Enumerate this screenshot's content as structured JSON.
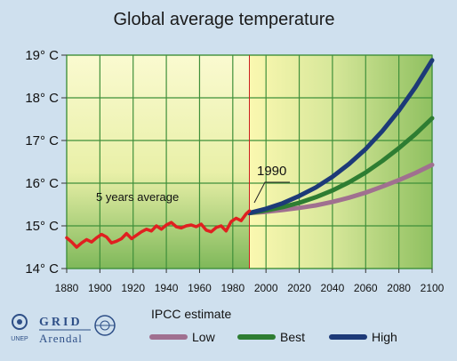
{
  "chart_data": {
    "type": "line",
    "title": "Global average temperature",
    "xlim": [
      1880,
      2100
    ],
    "ylim": [
      14,
      19
    ],
    "x_ticks": [
      "1880",
      "1900",
      "1920",
      "1940",
      "1960",
      "1980",
      "2000",
      "2020",
      "2040",
      "2060",
      "2080",
      "2100"
    ],
    "y_ticks": [
      "14° C",
      "15° C",
      "16° C",
      "17° C",
      "18° C",
      "19° C"
    ],
    "grid": true,
    "annotations": {
      "observed_label": "5 years average",
      "divider_label": "1990",
      "divider_year": 1990
    },
    "observed": {
      "x": [
        1880,
        1883,
        1886,
        1889,
        1892,
        1895,
        1898,
        1901,
        1904,
        1907,
        1910,
        1913,
        1916,
        1919,
        1922,
        1925,
        1928,
        1931,
        1934,
        1937,
        1940,
        1943,
        1946,
        1949,
        1952,
        1955,
        1958,
        1961,
        1964,
        1967,
        1970,
        1973,
        1976,
        1979,
        1982,
        1985,
        1988,
        1990
      ],
      "y": [
        14.72,
        14.62,
        14.5,
        14.6,
        14.68,
        14.62,
        14.72,
        14.8,
        14.74,
        14.6,
        14.64,
        14.7,
        14.82,
        14.7,
        14.78,
        14.86,
        14.92,
        14.88,
        15.0,
        14.92,
        15.02,
        15.08,
        14.98,
        14.95,
        15.0,
        15.02,
        14.98,
        15.04,
        14.9,
        14.86,
        14.96,
        15.0,
        14.88,
        15.1,
        15.18,
        15.12,
        15.28,
        15.35
      ],
      "color": "#e02020"
    },
    "legend_title": "IPCC estimate",
    "series": [
      {
        "name": "Low",
        "x": [
          1990,
          2000,
          2010,
          2020,
          2030,
          2040,
          2050,
          2060,
          2070,
          2080,
          2090,
          2100
        ],
        "y": [
          15.3,
          15.33,
          15.37,
          15.42,
          15.48,
          15.56,
          15.66,
          15.78,
          15.92,
          16.07,
          16.24,
          16.43
        ],
        "color": "#a07090"
      },
      {
        "name": "Best",
        "x": [
          1990,
          2000,
          2010,
          2020,
          2030,
          2040,
          2050,
          2060,
          2070,
          2080,
          2090,
          2100
        ],
        "y": [
          15.3,
          15.36,
          15.44,
          15.54,
          15.67,
          15.83,
          16.02,
          16.25,
          16.52,
          16.82,
          17.15,
          17.52
        ],
        "color": "#2e7d32"
      },
      {
        "name": "High",
        "x": [
          1990,
          2000,
          2010,
          2020,
          2030,
          2040,
          2050,
          2060,
          2070,
          2080,
          2090,
          2100
        ],
        "y": [
          15.3,
          15.4,
          15.53,
          15.7,
          15.9,
          16.15,
          16.45,
          16.8,
          17.22,
          17.7,
          18.25,
          18.88
        ],
        "color": "#1d3a78"
      }
    ]
  },
  "logo": {
    "grid_text": "GRID",
    "arendal_text": "Arendal",
    "unep_text": "UNEP"
  }
}
